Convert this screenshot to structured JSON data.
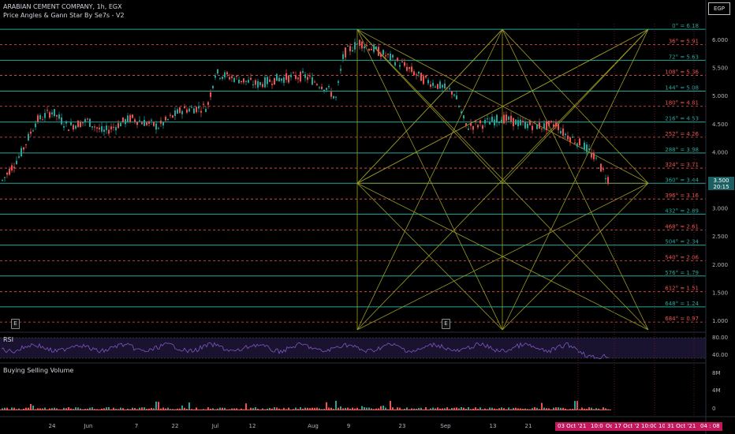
{
  "header": {
    "symbol_line": "ARABIAN CEMENT COMPANY, 1h, EGX",
    "indicator": "Price Angles & Gann Star By Se7s - V2"
  },
  "currency": "EGP",
  "last_price": {
    "value": "3.500",
    "countdown": "20:15"
  },
  "price_axis": [
    {
      "label": "6.000",
      "value": 6.0
    },
    {
      "label": "5.500",
      "value": 5.5
    },
    {
      "label": "5.000",
      "value": 5.0
    },
    {
      "label": "4.500",
      "value": 4.5
    },
    {
      "label": "4.000",
      "value": 4.0
    },
    {
      "label": "3.500",
      "value": 3.5
    },
    {
      "label": "3.000",
      "value": 3.0
    },
    {
      "label": "2.500",
      "value": 2.5
    },
    {
      "label": "2.000",
      "value": 2.0
    },
    {
      "label": "1.500",
      "value": 1.5
    },
    {
      "label": "1.000",
      "value": 1.0
    }
  ],
  "gann_levels": [
    {
      "label": "0° = 6.18",
      "price": 6.18,
      "kind": "solid"
    },
    {
      "label": "36° = 5.91",
      "price": 5.91,
      "kind": "dash"
    },
    {
      "label": "72° = 5.63",
      "price": 5.63,
      "kind": "solid"
    },
    {
      "label": "108° = 5.36",
      "price": 5.36,
      "kind": "dash"
    },
    {
      "label": "144° = 5.08",
      "price": 5.08,
      "kind": "solid"
    },
    {
      "label": "180° = 4.81",
      "price": 4.81,
      "kind": "dash"
    },
    {
      "label": "216° = 4.53",
      "price": 4.53,
      "kind": "solid"
    },
    {
      "label": "252° = 4.26",
      "price": 4.26,
      "kind": "dash"
    },
    {
      "label": "288° = 3.98",
      "price": 3.98,
      "kind": "solid"
    },
    {
      "label": "324° = 3.71",
      "price": 3.71,
      "kind": "dash"
    },
    {
      "label": "360° = 3.44",
      "price": 3.44,
      "kind": "solid"
    },
    {
      "label": "396° = 3.16",
      "price": 3.16,
      "kind": "dash"
    },
    {
      "label": "432° = 2.89",
      "price": 2.89,
      "kind": "solid"
    },
    {
      "label": "468° = 2.61",
      "price": 2.61,
      "kind": "dash"
    },
    {
      "label": "504° = 2.34",
      "price": 2.34,
      "kind": "solid"
    },
    {
      "label": "540° = 2.06",
      "price": 2.06,
      "kind": "dash"
    },
    {
      "label": "576° = 1.79",
      "price": 1.79,
      "kind": "solid"
    },
    {
      "label": "612° = 1.51",
      "price": 1.51,
      "kind": "dash"
    },
    {
      "label": "648° = 1.24",
      "price": 1.24,
      "kind": "solid"
    },
    {
      "label": "684° = 0.97",
      "price": 0.97,
      "kind": "dash"
    }
  ],
  "rsi": {
    "title": "RSI",
    "axis": [
      "80.00",
      "40.00"
    ]
  },
  "volume": {
    "title": "Buying Selling Volume",
    "axis": [
      "8M",
      "4M",
      "0"
    ]
  },
  "time_axis": [
    "24",
    "Jun",
    "7",
    "22",
    "Jul",
    "12",
    "Aug",
    "9",
    "23",
    "Sep",
    "13",
    "21"
  ],
  "time_labels": [
    "03 Oct '21",
    "10:00",
    "Oct",
    "17 Oct '21",
    "10:00",
    "10:",
    "31 Oct '21",
    "04 : 08"
  ],
  "colors": {
    "solid_level": "#26a69a",
    "dash_level": "#ef5350",
    "gann": "#9a9a22",
    "candle_up": "#26a69a",
    "candle_down": "#ef5350",
    "rsi_line": "#7e57c2",
    "time_highlight": "#c2185b"
  }
}
